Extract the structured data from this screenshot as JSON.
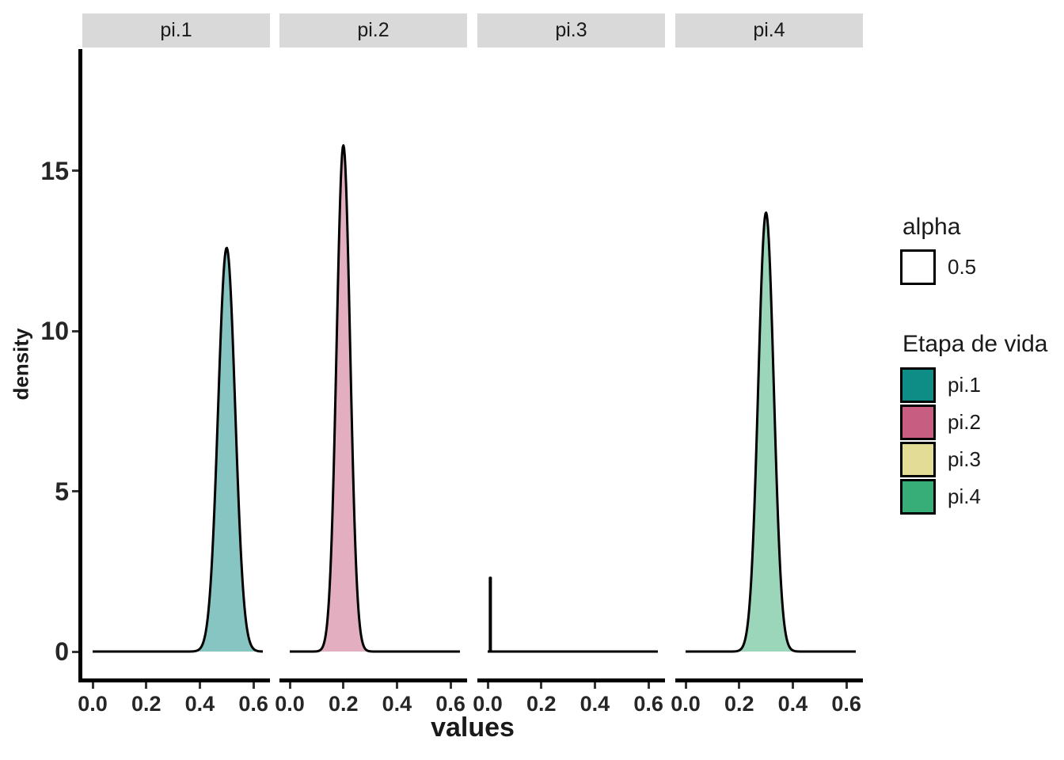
{
  "figure": {
    "background": "#FFFFFF"
  },
  "chart_data": {
    "type": "area",
    "subtype": "faceted-density-plot",
    "title": "",
    "xlabel": "values",
    "ylabel": "density",
    "facet_labels": [
      "pi.1",
      "pi.2",
      "pi.3",
      "pi.4"
    ],
    "x_ticks": {
      "labels": [
        "0.0",
        "0.2",
        "0.4",
        "0.6"
      ],
      "values": [
        0,
        0.2,
        0.4,
        0.6
      ]
    },
    "y_ticks": {
      "labels": [
        "0",
        "5",
        "10",
        "15"
      ],
      "values": [
        0,
        5,
        10,
        15
      ]
    },
    "x_data_range": [
      0,
      0.635
    ],
    "xlim": [
      -0.033,
      0.668
    ],
    "ylim": [
      0,
      18.8
    ],
    "grid": "off",
    "fill_alpha": 0.5,
    "series": [
      {
        "facet": "pi.1",
        "shape": "gaussian",
        "mean": 0.5,
        "sd": 0.0317,
        "peak_density": 12.6,
        "color": "#0E8C86"
      },
      {
        "facet": "pi.2",
        "shape": "gaussian",
        "mean": 0.2,
        "sd": 0.0252,
        "peak_density": 15.8,
        "color": "#C75E82"
      },
      {
        "facet": "pi.3",
        "shape": "spike",
        "mean": 0.01,
        "sd": 0.0015,
        "peak_density": 2.3,
        "color": "#E3DC96"
      },
      {
        "facet": "pi.4",
        "shape": "gaussian",
        "mean": 0.3,
        "sd": 0.029,
        "peak_density": 13.7,
        "color": "#37AE77"
      }
    ],
    "strip_bg": "#D9D9D9",
    "axis_color": "#000000",
    "tick_color": "#333333",
    "text_color": "#1A1A1A",
    "legend": {
      "position": "right",
      "alpha_group": {
        "title": "alpha",
        "entries": [
          {
            "label": "0.5",
            "color": "#FFFFFF"
          }
        ]
      },
      "fill_group": {
        "title": "Etapa de vida",
        "entries": [
          {
            "label": "pi.1",
            "color": "#0E8C86"
          },
          {
            "label": "pi.2",
            "color": "#C75E82"
          },
          {
            "label": "pi.3",
            "color": "#E3DC96"
          },
          {
            "label": "pi.4",
            "color": "#37AE77"
          }
        ]
      }
    }
  }
}
